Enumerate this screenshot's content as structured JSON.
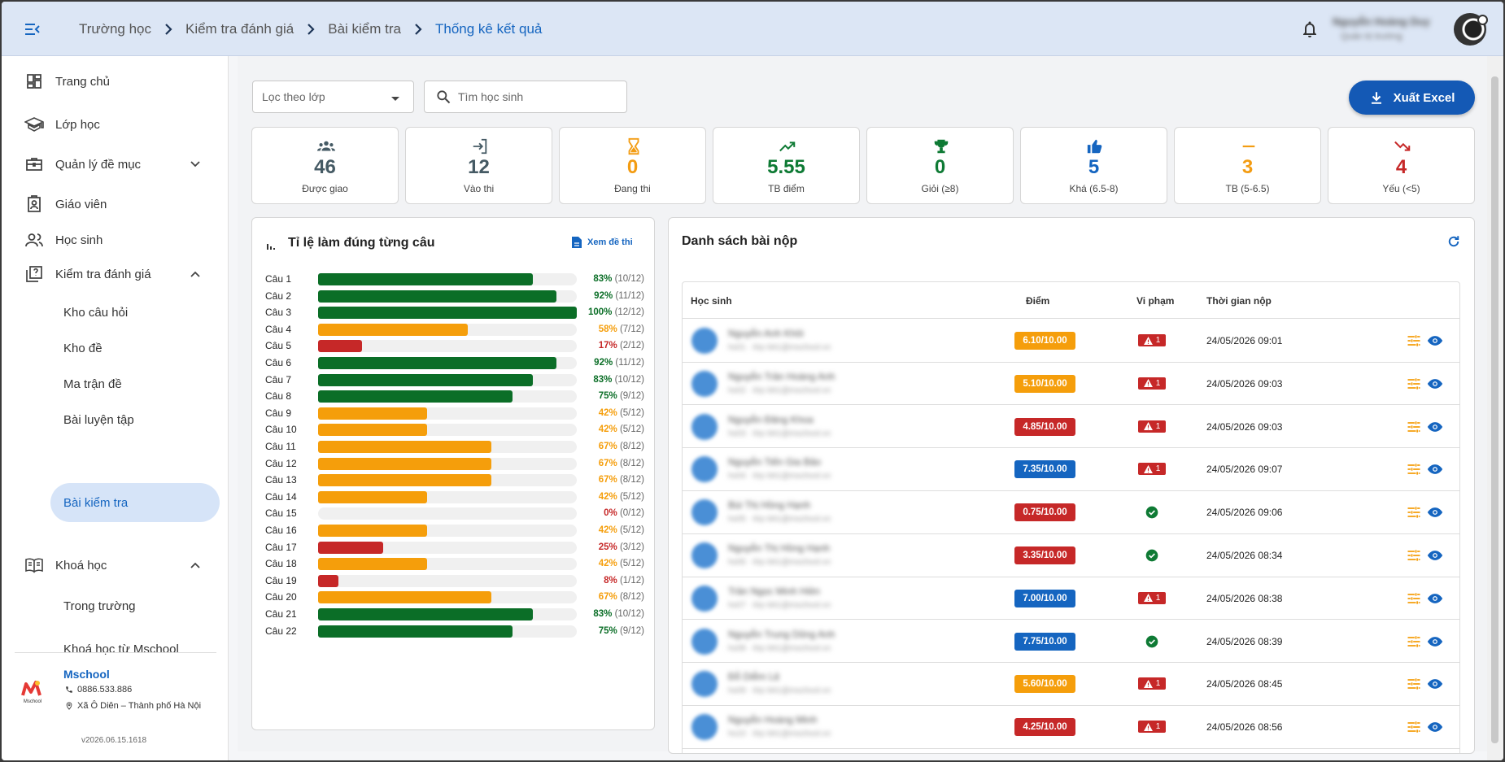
{
  "breadcrumb": [
    "Trường học",
    "Kiểm tra đánh giá",
    "Bài kiểm tra",
    "Thống kê kết quả"
  ],
  "user": {
    "name": "Nguyễn Hoàng Duy",
    "role": "Quản trị trường"
  },
  "sidebar": {
    "items": [
      {
        "label": "Trang chủ",
        "icon": "dashboard-icon"
      },
      {
        "label": "Lớp học",
        "icon": "school-icon"
      },
      {
        "label": "Quản lý đề mục",
        "icon": "briefcase-icon"
      },
      {
        "label": "Giáo viên",
        "icon": "teacher-badge-icon"
      },
      {
        "label": "Học sinh",
        "icon": "students-icon"
      },
      {
        "label": "Kiểm tra đánh giá",
        "icon": "quiz-icon"
      },
      {
        "label": "Khoá học",
        "icon": "book-icon"
      }
    ],
    "assessment_sub": [
      "Kho câu hỏi",
      "Kho đề",
      "Ma trận đề",
      "Bài luyện tập",
      "Bài kiểm tra"
    ],
    "course_sub": [
      "Trong trường",
      "Khoá học từ Mschool"
    ],
    "active_sub": "Bài kiểm tra",
    "org": {
      "name": "Mschool",
      "phone": "0886.533.886",
      "address": "Xã Ô Diên – Thành phố Hà Nội",
      "logo_text": "Mschool"
    },
    "version": "v2026.06.15.1618"
  },
  "filters": {
    "class_label": "Lọc theo lớp",
    "search_placeholder": "Tìm học sinh",
    "export_label": "Xuất Excel"
  },
  "stats": [
    {
      "value": "46",
      "label": "Được giao",
      "color": "#455a64",
      "icon": "group-icon"
    },
    {
      "value": "12",
      "label": "Vào thi",
      "color": "#455a64",
      "icon": "login-icon"
    },
    {
      "value": "0",
      "label": "Đang thi",
      "color": "#f39c12",
      "icon": "hourglass-icon"
    },
    {
      "value": "5.55",
      "label": "TB điểm",
      "color": "#0e7a34",
      "icon": "trending-up-icon"
    },
    {
      "value": "0",
      "label": "Giỏi (≥8)",
      "color": "#0e7a34",
      "icon": "trophy-icon"
    },
    {
      "value": "5",
      "label": "Khá (6.5-8)",
      "color": "#1565c0",
      "icon": "thumb-up-icon"
    },
    {
      "value": "3",
      "label": "TB (5-6.5)",
      "color": "#f39c12",
      "icon": "dash-icon"
    },
    {
      "value": "4",
      "label": "Yếu (<5)",
      "color": "#c62828",
      "icon": "trending-down-icon"
    }
  ],
  "question_panel": {
    "title": "Tỉ lệ làm đúng từng câu",
    "view_exam": "Xem đề thi",
    "colors": {
      "high": "#0b6e27",
      "mid": "#f59e0b",
      "low": "#c62828"
    },
    "questions": [
      {
        "label": "Câu 1",
        "pct": 83,
        "pct_text": "83%",
        "count": "(10/12)"
      },
      {
        "label": "Câu 2",
        "pct": 92,
        "pct_text": "92%",
        "count": "(11/12)"
      },
      {
        "label": "Câu 3",
        "pct": 100,
        "pct_text": "100%",
        "count": "(12/12)"
      },
      {
        "label": "Câu 4",
        "pct": 58,
        "pct_text": "58%",
        "count": "(7/12)"
      },
      {
        "label": "Câu 5",
        "pct": 17,
        "pct_text": "17%",
        "count": "(2/12)"
      },
      {
        "label": "Câu 6",
        "pct": 92,
        "pct_text": "92%",
        "count": "(11/12)"
      },
      {
        "label": "Câu 7",
        "pct": 83,
        "pct_text": "83%",
        "count": "(10/12)"
      },
      {
        "label": "Câu 8",
        "pct": 75,
        "pct_text": "75%",
        "count": "(9/12)"
      },
      {
        "label": "Câu 9",
        "pct": 42,
        "pct_text": "42%",
        "count": "(5/12)"
      },
      {
        "label": "Câu 10",
        "pct": 42,
        "pct_text": "42%",
        "count": "(5/12)"
      },
      {
        "label": "Câu 11",
        "pct": 67,
        "pct_text": "67%",
        "count": "(8/12)"
      },
      {
        "label": "Câu 12",
        "pct": 67,
        "pct_text": "67%",
        "count": "(8/12)"
      },
      {
        "label": "Câu 13",
        "pct": 67,
        "pct_text": "67%",
        "count": "(8/12)"
      },
      {
        "label": "Câu 14",
        "pct": 42,
        "pct_text": "42%",
        "count": "(5/12)"
      },
      {
        "label": "Câu 15",
        "pct": 0,
        "pct_text": "0%",
        "count": "(0/12)"
      },
      {
        "label": "Câu 16",
        "pct": 42,
        "pct_text": "42%",
        "count": "(5/12)"
      },
      {
        "label": "Câu 17",
        "pct": 25,
        "pct_text": "25%",
        "count": "(3/12)"
      },
      {
        "label": "Câu 18",
        "pct": 42,
        "pct_text": "42%",
        "count": "(5/12)"
      },
      {
        "label": "Câu 19",
        "pct": 8,
        "pct_text": "8%",
        "count": "(1/12)"
      },
      {
        "label": "Câu 20",
        "pct": 67,
        "pct_text": "67%",
        "count": "(8/12)"
      },
      {
        "label": "Câu 21",
        "pct": 83,
        "pct_text": "83%",
        "count": "(10/12)"
      },
      {
        "label": "Câu 22",
        "pct": 75,
        "pct_text": "75%",
        "count": "(9/12)"
      }
    ]
  },
  "submissions": {
    "title": "Danh sách bài nộp",
    "headers": {
      "student": "Học sinh",
      "score": "Điểm",
      "violation": "Vi phạm",
      "time": "Thời gian nộp"
    },
    "rows": [
      {
        "name": "Nguyễn Anh Khôi",
        "email": "hs01 · lớp 6A1@mschool.vn",
        "score": "6.10/10.00",
        "score_color": "#f59e0b",
        "violations": "1",
        "time": "24/05/2026 09:01"
      },
      {
        "name": "Nguyễn Trần Hoàng Anh",
        "email": "hs02 · lớp 6A1@mschool.vn",
        "score": "5.10/10.00",
        "score_color": "#f59e0b",
        "violations": "1",
        "time": "24/05/2026 09:03"
      },
      {
        "name": "Nguyễn Đăng Khoa",
        "email": "hs03 · lớp 6A1@mschool.vn",
        "score": "4.85/10.00",
        "score_color": "#c62828",
        "violations": "1",
        "time": "24/05/2026 09:03"
      },
      {
        "name": "Nguyễn Tiến Gia Bảo",
        "email": "hs04 · lớp 6A1@mschool.vn",
        "score": "7.35/10.00",
        "score_color": "#1565c0",
        "violations": "1",
        "time": "24/05/2026 09:07"
      },
      {
        "name": "Bùi Thị Hồng Hạnh",
        "email": "hs05 · lớp 6A1@mschool.vn",
        "score": "0.75/10.00",
        "score_color": "#c62828",
        "violations": "",
        "time": "24/05/2026 09:06"
      },
      {
        "name": "Nguyễn Thị Hồng Hạnh",
        "email": "hs06 · lớp 6A1@mschool.vn",
        "score": "3.35/10.00",
        "score_color": "#c62828",
        "violations": "",
        "time": "24/05/2026 08:34"
      },
      {
        "name": "Trần Ngọc Minh Hiền",
        "email": "hs07 · lớp 6A1@mschool.vn",
        "score": "7.00/10.00",
        "score_color": "#1565c0",
        "violations": "1",
        "time": "24/05/2026 08:38"
      },
      {
        "name": "Nguyễn Trung Dũng Anh",
        "email": "hs08 · lớp 6A1@mschool.vn",
        "score": "7.75/10.00",
        "score_color": "#1565c0",
        "violations": "",
        "time": "24/05/2026 08:39"
      },
      {
        "name": "Đỗ Diễm Lệ",
        "email": "hs09 · lớp 6A1@mschool.vn",
        "score": "5.60/10.00",
        "score_color": "#f59e0b",
        "violations": "1",
        "time": "24/05/2026 08:45"
      },
      {
        "name": "Nguyễn Hoàng Minh",
        "email": "hs10 · lớp 6A1@mschool.vn",
        "score": "4.25/10.00",
        "score_color": "#c62828",
        "violations": "1",
        "time": "24/05/2026 08:56"
      }
    ]
  }
}
